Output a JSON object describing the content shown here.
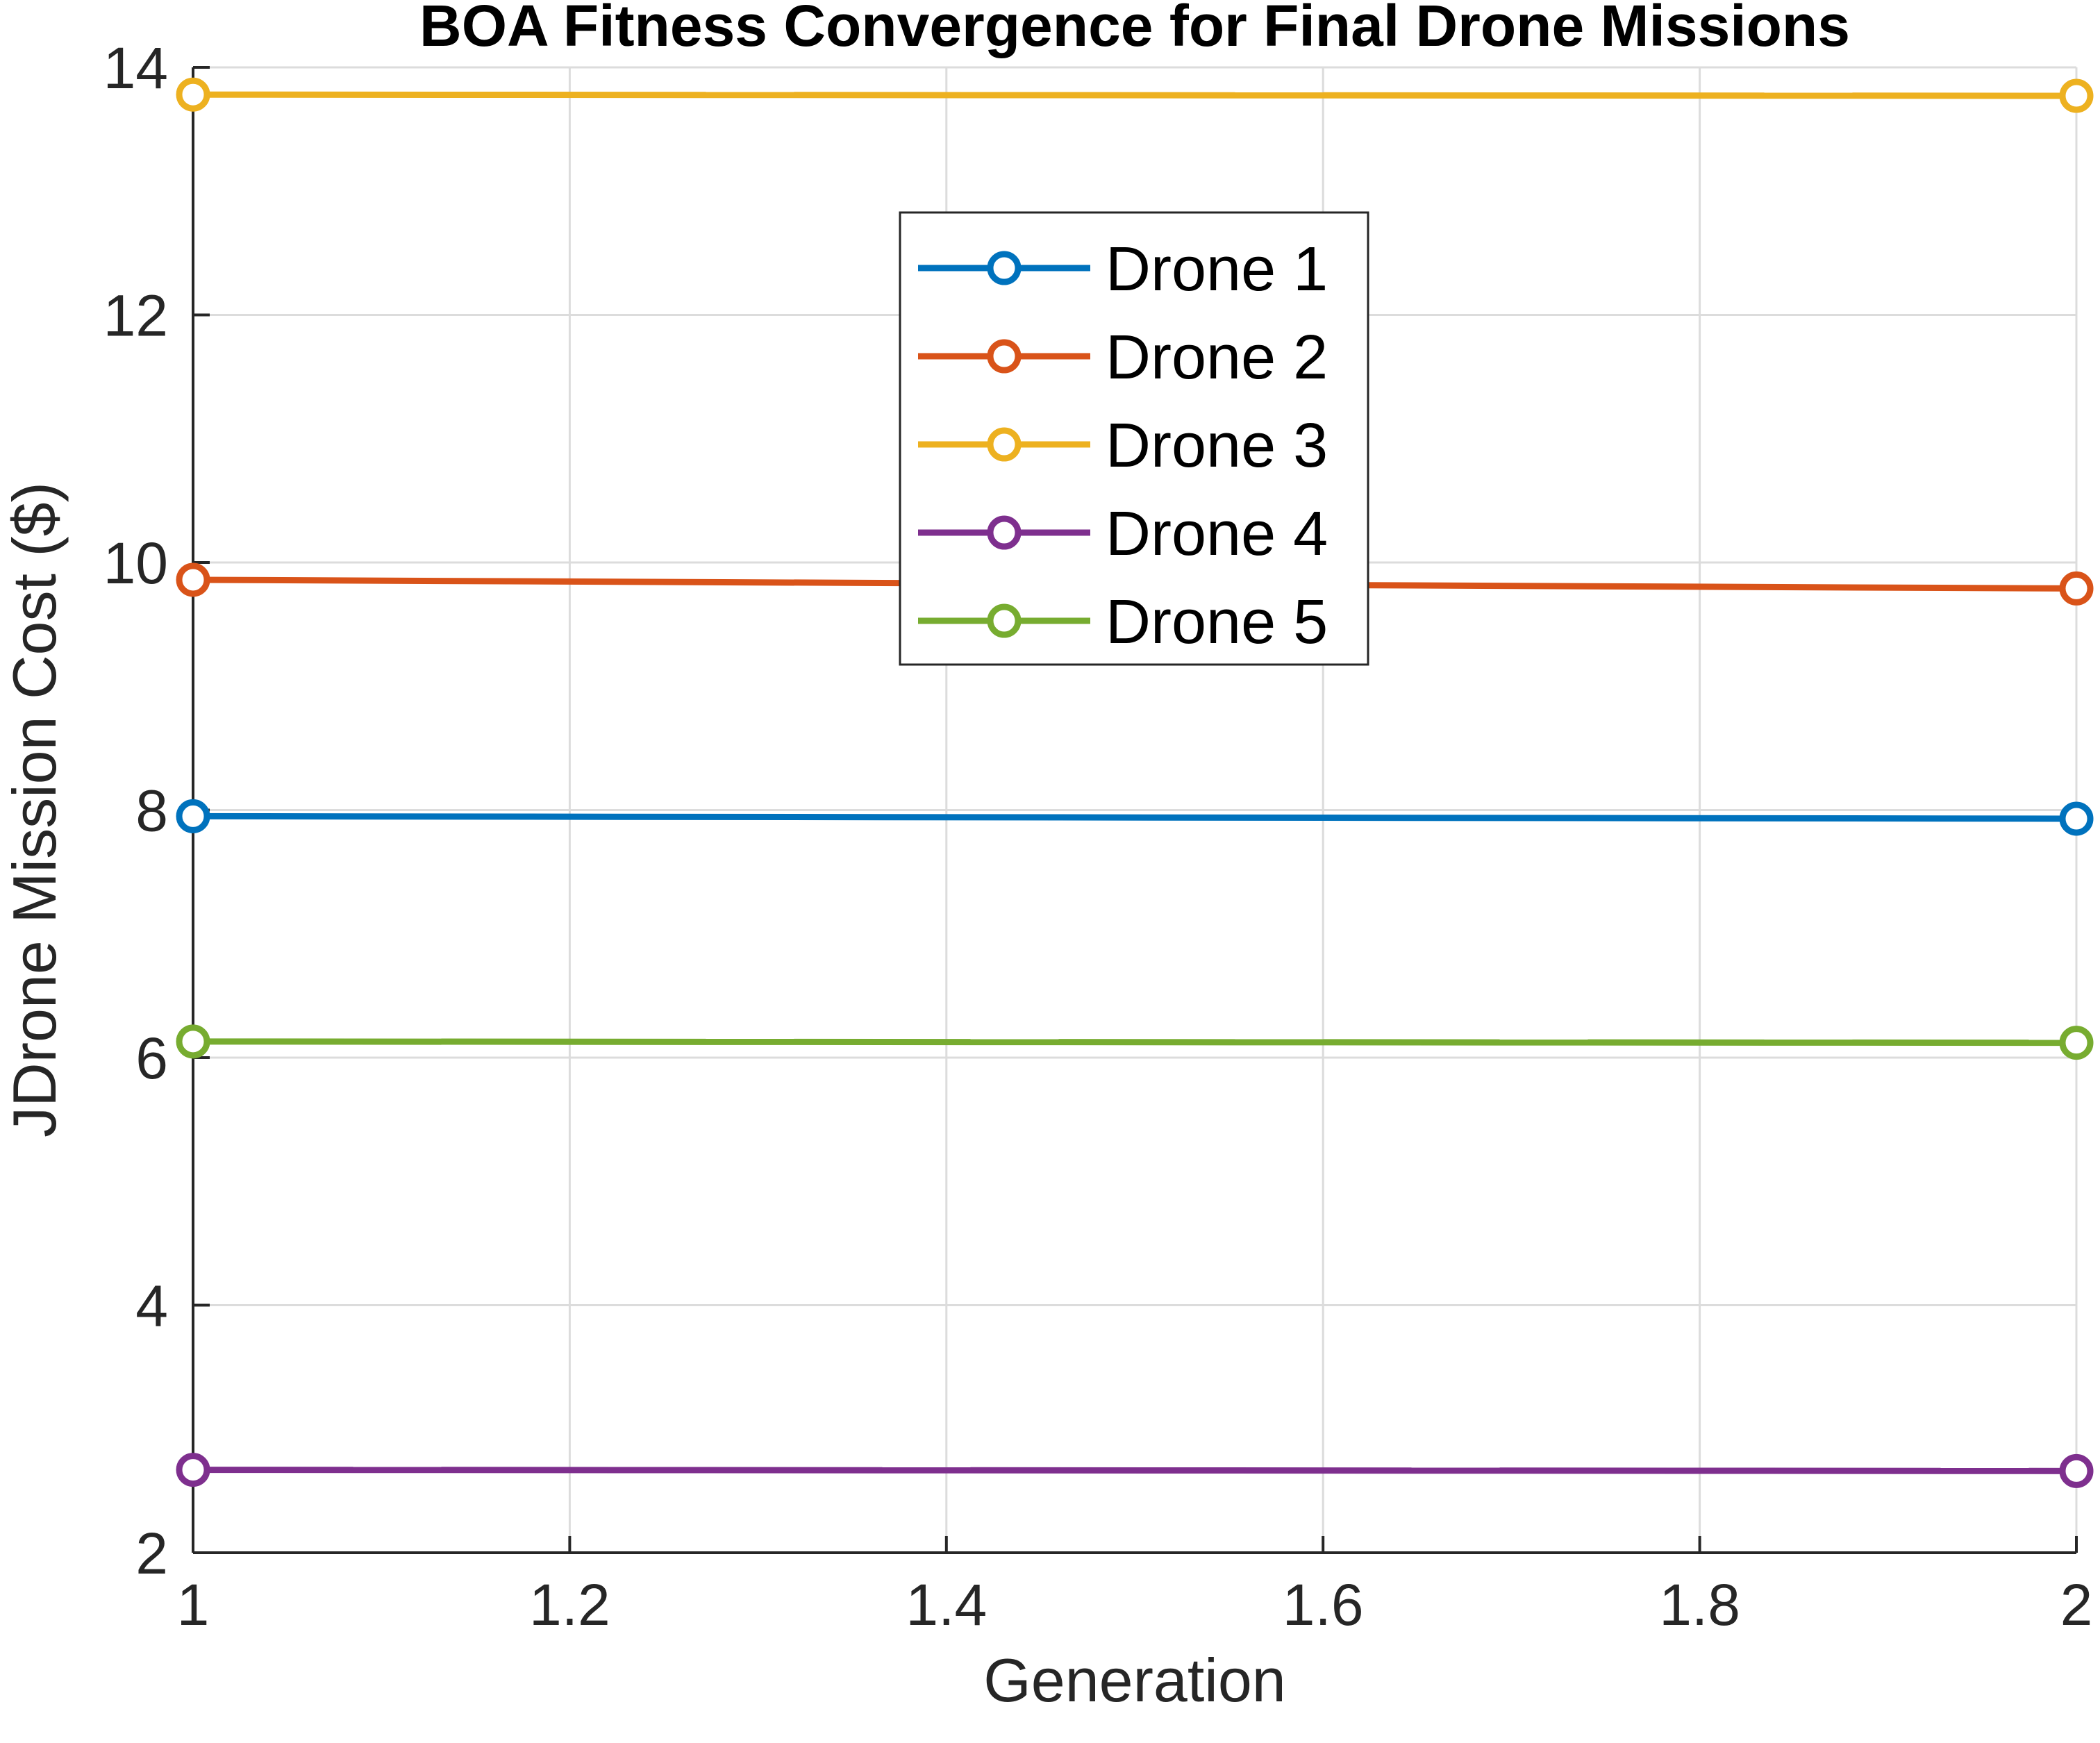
{
  "chart_data": {
    "type": "line",
    "title": "BOA Fitness Convergence for Final Drone Missions",
    "xlabel": "Generation",
    "ylabel": "JDrone Mission Cost ($)",
    "x": [
      1,
      2
    ],
    "xlim": [
      1,
      2
    ],
    "ylim": [
      2,
      14
    ],
    "xticks": [
      "1",
      "1.2",
      "1.4",
      "1.6",
      "1.8",
      "2"
    ],
    "yticks": [
      "2",
      "4",
      "6",
      "8",
      "10",
      "12",
      "14"
    ],
    "grid": true,
    "legend_position": "top-center",
    "series": [
      {
        "name": "Drone 1",
        "values": [
          7.95,
          7.93
        ],
        "color": "#0072BD"
      },
      {
        "name": "Drone 2",
        "values": [
          9.86,
          9.79
        ],
        "color": "#D95319"
      },
      {
        "name": "Drone 3",
        "values": [
          13.78,
          13.77
        ],
        "color": "#EDB120"
      },
      {
        "name": "Drone 4",
        "values": [
          2.67,
          2.66
        ],
        "color": "#7E2F8E"
      },
      {
        "name": "Drone 5",
        "values": [
          6.13,
          6.12
        ],
        "color": "#77AC30"
      }
    ]
  }
}
